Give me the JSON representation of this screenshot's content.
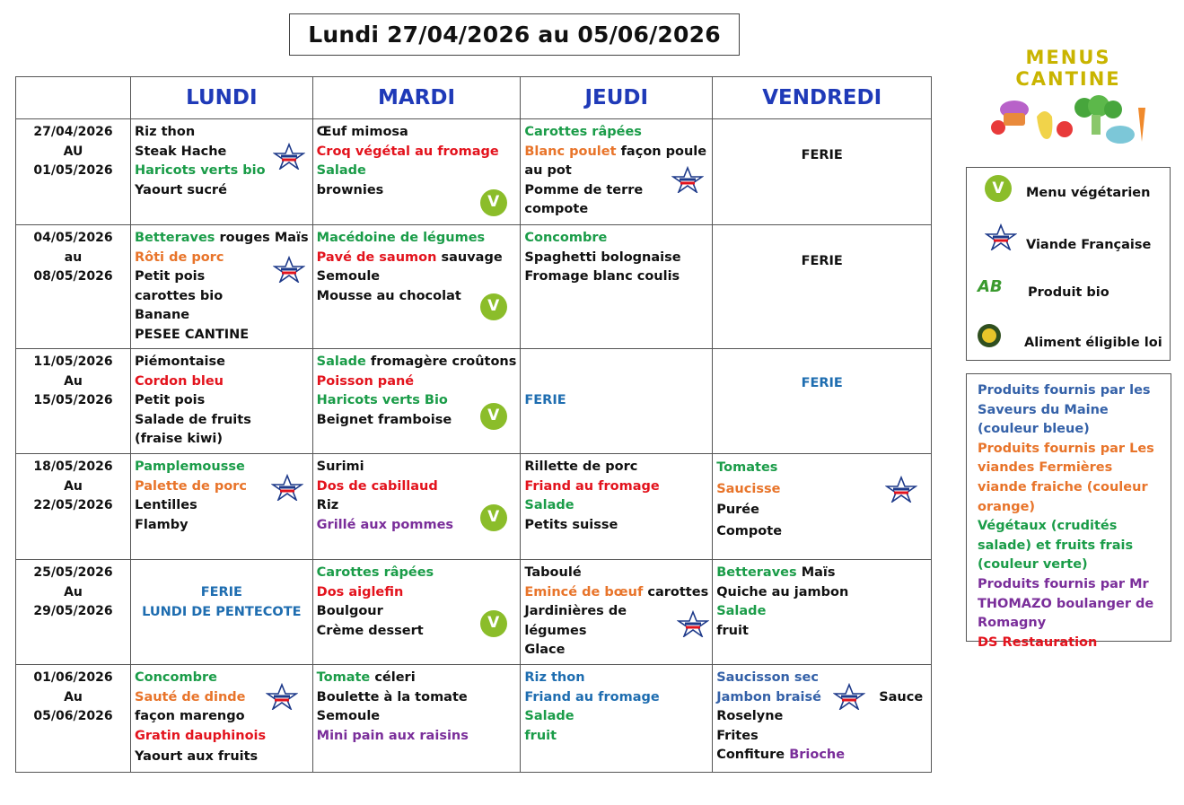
{
  "title": "Lundi 27/04/2026 au 05/06/2026",
  "header": {
    "lundi": "LUNDI",
    "mardi": "MARDI",
    "jeudi": "JEUDI",
    "vendredi": "VENDREDI"
  },
  "colors": {
    "green": "#1a9c48",
    "orange": "#e8742a",
    "red": "#e3131d",
    "blue": "#1e6db0",
    "purple": "#7a2e9a",
    "header_blue": "#1f3ab8"
  },
  "weeks": [
    {
      "dates": [
        "27/04/2026",
        "AU",
        "01/05/2026"
      ],
      "lundi": [
        [
          "Riz thon",
          ""
        ],
        [
          "Steak Hache",
          ""
        ],
        [
          "Haricots verts bio",
          "green"
        ],
        [
          "Yaourt sucré",
          ""
        ]
      ],
      "mardi": [
        [
          "Œuf mimosa",
          ""
        ],
        [
          "Croq végétal au fromage",
          "red"
        ],
        [
          "Salade",
          "green"
        ],
        [
          "brownies",
          ""
        ]
      ],
      "jeudi": [
        [
          "Carottes râpées",
          "green"
        ],
        [
          "Blanc poulet",
          "orange"
        ],
        [
          "façon poule au pot",
          ""
        ],
        [
          "Pomme de terre",
          ""
        ],
        [
          "compote",
          ""
        ]
      ],
      "vendredi": "FERIE"
    },
    {
      "dates": [
        "04/05/2026",
        "au",
        "08/05/2026"
      ],
      "lundi": [
        [
          "Betteraves",
          "green"
        ],
        [
          "rouges Maïs",
          ""
        ],
        [
          "Rôti de porc",
          "orange"
        ],
        [
          "Petit pois carottes bio",
          ""
        ],
        [
          "Banane",
          ""
        ],
        [
          "PESEE CANTINE",
          ""
        ]
      ],
      "mardi": [
        [
          "Macédoine de légumes",
          "green"
        ],
        [
          "Pavé de saumon",
          "red"
        ],
        [
          "sauvage",
          ""
        ],
        [
          "Semoule",
          ""
        ],
        [
          "Mousse au chocolat",
          ""
        ]
      ],
      "jeudi": [
        [
          "Concombre",
          "green"
        ],
        [
          "Spaghetti bolognaise",
          ""
        ],
        [
          "Fromage blanc coulis",
          ""
        ]
      ],
      "vendredi": "FERIE"
    },
    {
      "dates": [
        "11/05/2026",
        "Au",
        "15/05/2026"
      ],
      "lundi": [
        [
          "Piémontaise",
          ""
        ],
        [
          "Cordon bleu",
          "red"
        ],
        [
          "Petit pois",
          ""
        ],
        [
          "Salade de fruits (fraise kiwi)",
          ""
        ]
      ],
      "mardi": [
        [
          "Salade",
          "green"
        ],
        [
          "fromagère croûtons",
          ""
        ],
        [
          "Poisson pané",
          "red"
        ],
        [
          "Haricots verts Bio",
          "green"
        ],
        [
          "Beignet framboise",
          ""
        ]
      ],
      "jeudi": "FERIE",
      "vendredi": "FERIE"
    },
    {
      "dates": [
        "18/05/2026",
        "Au",
        "22/05/2026"
      ],
      "lundi": [
        [
          "Pamplemousse",
          "green"
        ],
        [
          "Palette de porc",
          "orange"
        ],
        [
          "Lentilles",
          ""
        ],
        [
          "Flamby",
          ""
        ]
      ],
      "mardi": [
        [
          "Surimi",
          ""
        ],
        [
          "Dos de cabillaud",
          "red"
        ],
        [
          "Riz",
          ""
        ],
        [
          "Grillé aux pommes",
          "purple"
        ]
      ],
      "jeudi": [
        [
          "Rillette de porc",
          ""
        ],
        [
          "Friand au fromage",
          "red"
        ],
        [
          "Salade",
          "green"
        ],
        [
          "Petits suisse",
          ""
        ]
      ],
      "vendredi": [
        [
          "Tomates",
          "green"
        ],
        [
          "Saucisse",
          "orange"
        ],
        [
          "Purée",
          ""
        ],
        [
          "Compote",
          ""
        ]
      ]
    },
    {
      "dates": [
        "25/05/2026",
        "Au",
        "29/05/2026"
      ],
      "lundi_ferie": [
        "FERIE",
        "LUNDI DE PENTECOTE"
      ],
      "mardi": [
        [
          "Carottes râpées",
          "green"
        ],
        [
          "Dos aiglefin",
          "red"
        ],
        [
          "Boulgour",
          ""
        ],
        [
          "Crème dessert",
          ""
        ]
      ],
      "jeudi": [
        [
          "Taboulé",
          ""
        ],
        [
          "Emincé de bœuf",
          "orange"
        ],
        [
          "carottes",
          ""
        ],
        [
          "Jardinières de légumes",
          ""
        ],
        [
          "Glace",
          ""
        ]
      ],
      "vendredi": [
        [
          "Betteraves",
          "green"
        ],
        [
          "Maïs",
          ""
        ],
        [
          "Quiche au jambon",
          ""
        ],
        [
          "Salade",
          "green"
        ],
        [
          "fruit",
          ""
        ]
      ]
    },
    {
      "dates": [
        "01/06/2026",
        "Au",
        "05/06/2026"
      ],
      "lundi": [
        [
          "Concombre",
          "green"
        ],
        [
          "Sauté de dinde",
          "orange"
        ],
        [
          "façon marengo",
          ""
        ],
        [
          "Gratin dauphinois",
          "red"
        ],
        [
          "Yaourt aux fruits",
          ""
        ]
      ],
      "mardi": [
        [
          "Tomate",
          "green"
        ],
        [
          "céleri",
          ""
        ],
        [
          "Boulette à la tomate",
          ""
        ],
        [
          "Semoule",
          ""
        ],
        [
          "Mini pain aux raisins",
          "purple"
        ]
      ],
      "jeudi": [
        [
          "Riz thon",
          "blue"
        ],
        [
          "Friand au fromage",
          "blue"
        ],
        [
          "Salade",
          "green"
        ],
        [
          "fruit",
          "green"
        ]
      ],
      "vendredi": [
        [
          "Saucisson sec",
          "slate"
        ],
        [
          "Jambon braisé",
          "slate"
        ],
        [
          "Sauce",
          ""
        ],
        [
          "Roselyne",
          ""
        ],
        [
          "Frites",
          ""
        ],
        [
          "Confiture",
          ""
        ],
        [
          "Brioche",
          "purple"
        ]
      ]
    }
  ],
  "logo": {
    "title": "MENUS CANTINE"
  },
  "legend": {
    "vegetarien": "Menu végétarien",
    "viande": "Viande Française",
    "bio": "Produit bio",
    "bio_mark": "AB",
    "egalim": "Aliment éligible loi",
    "vege_mark": "V",
    "vf_mark": "VIANDE FRANÇAISE"
  },
  "suppliers": [
    {
      "text": "Produits fournis par les Saveurs du Maine (couleur bleue)",
      "color": "#3461a8"
    },
    {
      "text": "Produits fournis par Les viandes Fermières viande fraiche (couleur orange)",
      "color": "#e8742a"
    },
    {
      "text": "Végétaux (crudités salade) et fruits frais (couleur verte)",
      "color": "#1a9c48"
    },
    {
      "text": "Produits fournis par Mr THOMAZO boulanger de Romagny",
      "color": "#7a2e9a"
    },
    {
      "text": "DS Restauration",
      "color": "#e3131d"
    }
  ]
}
